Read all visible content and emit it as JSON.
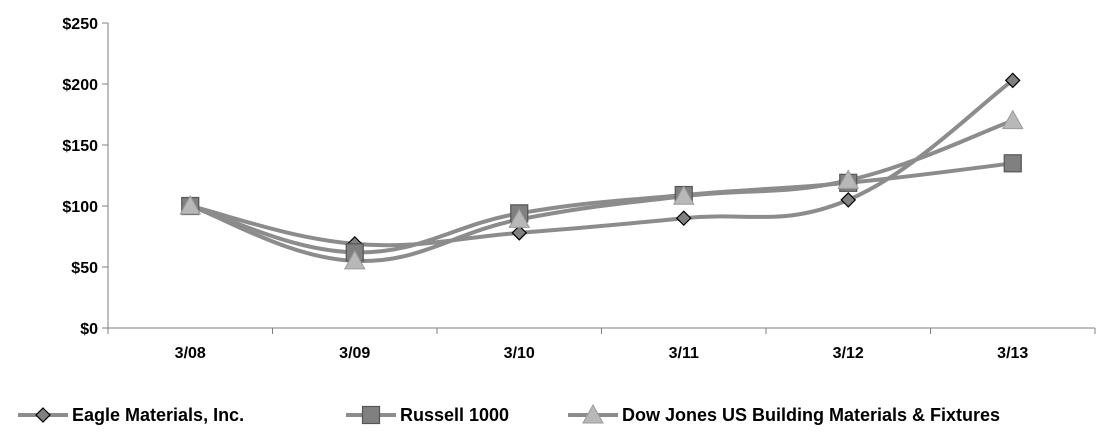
{
  "chart_data": {
    "type": "line",
    "categories": [
      "3/08",
      "3/09",
      "3/10",
      "3/11",
      "3/12",
      "3/13"
    ],
    "ylim": [
      0,
      250
    ],
    "yticks": [
      0,
      50,
      100,
      150,
      200,
      250
    ],
    "ytick_labels": [
      "$0",
      "$50",
      "$100",
      "$150",
      "$200",
      "$250"
    ],
    "title": "",
    "xlabel": "",
    "ylabel": "",
    "grid": false,
    "legend_position": "bottom",
    "series": [
      {
        "name": "Eagle Materials, Inc.",
        "marker": "diamond",
        "values": [
          100,
          69,
          78,
          90,
          105,
          203
        ]
      },
      {
        "name": "Russell 1000",
        "marker": "square",
        "values": [
          100,
          62,
          94,
          109,
          119,
          135
        ]
      },
      {
        "name": "Dow Jones US Building Materials & Fixtures",
        "marker": "triangle",
        "values": [
          100,
          55,
          89,
          108,
          121,
          170
        ]
      }
    ],
    "colors": {
      "line": "#8c8c8c",
      "axis": "#7f7f7f",
      "diamond_fill": "#808080",
      "square_fill": "#808080",
      "triangle_fill": "#b8b8b8",
      "marker_stroke": "#000000"
    }
  }
}
